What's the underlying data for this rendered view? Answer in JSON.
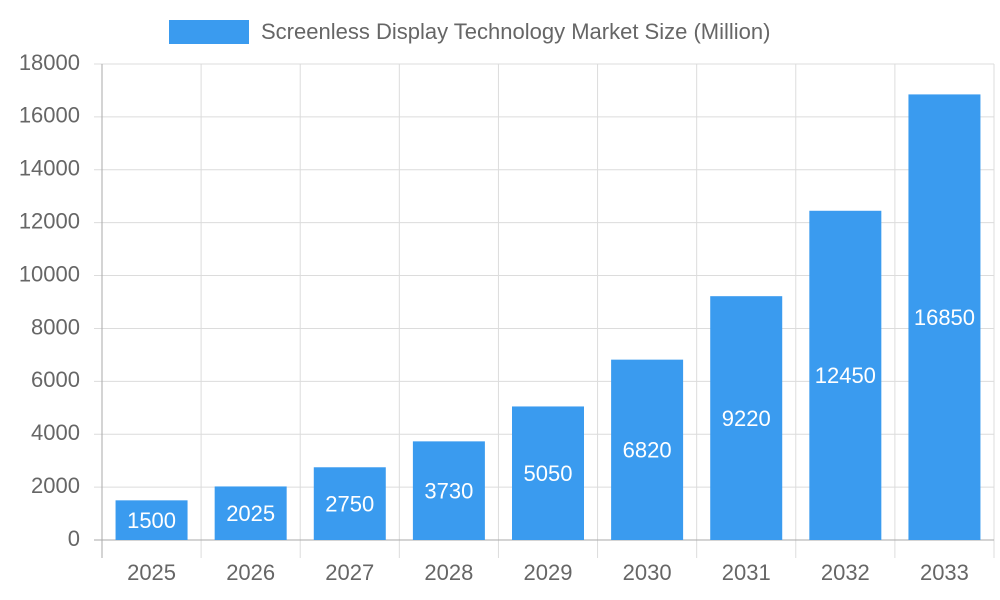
{
  "chart_data": {
    "type": "bar",
    "categories": [
      "2025",
      "2026",
      "2027",
      "2028",
      "2029",
      "2030",
      "2031",
      "2032",
      "2033"
    ],
    "series": [
      {
        "name": "Screenless Display Technology Market Size (Million)",
        "color": "#3a9bef",
        "values": [
          1500,
          2025,
          2750,
          3730,
          5050,
          6820,
          9220,
          12450,
          16850
        ]
      }
    ],
    "ylim": [
      0,
      18000
    ],
    "yticks": [
      0,
      2000,
      4000,
      6000,
      8000,
      10000,
      12000,
      14000,
      16000,
      18000
    ],
    "grid": true,
    "legend": "top"
  }
}
